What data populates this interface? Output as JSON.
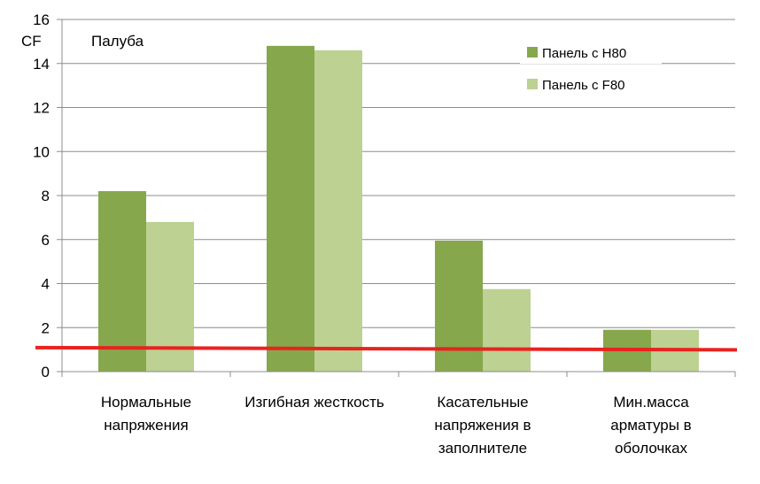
{
  "chart_data": {
    "type": "bar",
    "title": "",
    "annotation": "Палуба",
    "ylabel": "CF",
    "xlabel": "",
    "ylim": [
      0,
      16
    ],
    "yticks": [
      0,
      2,
      4,
      6,
      8,
      10,
      12,
      14,
      16
    ],
    "grid": true,
    "legend_position": "top-right",
    "categories": [
      [
        "Нормальные",
        "напряжения"
      ],
      [
        "Изгибная жесткость"
      ],
      [
        "Касательные",
        "напряжения в",
        "заполнителе"
      ],
      [
        "Мин.масса",
        "арматуры в",
        "оболочках"
      ]
    ],
    "series": [
      {
        "name": "Панель с H80",
        "color": "#86a74c",
        "values": [
          8.2,
          14.8,
          5.95,
          1.9
        ]
      },
      {
        "name": "Панель с F80",
        "color": "#bcd192",
        "values": [
          6.8,
          14.6,
          3.75,
          1.9
        ]
      }
    ],
    "reference_line": {
      "value": 1.05,
      "color": "#e8231f"
    }
  }
}
